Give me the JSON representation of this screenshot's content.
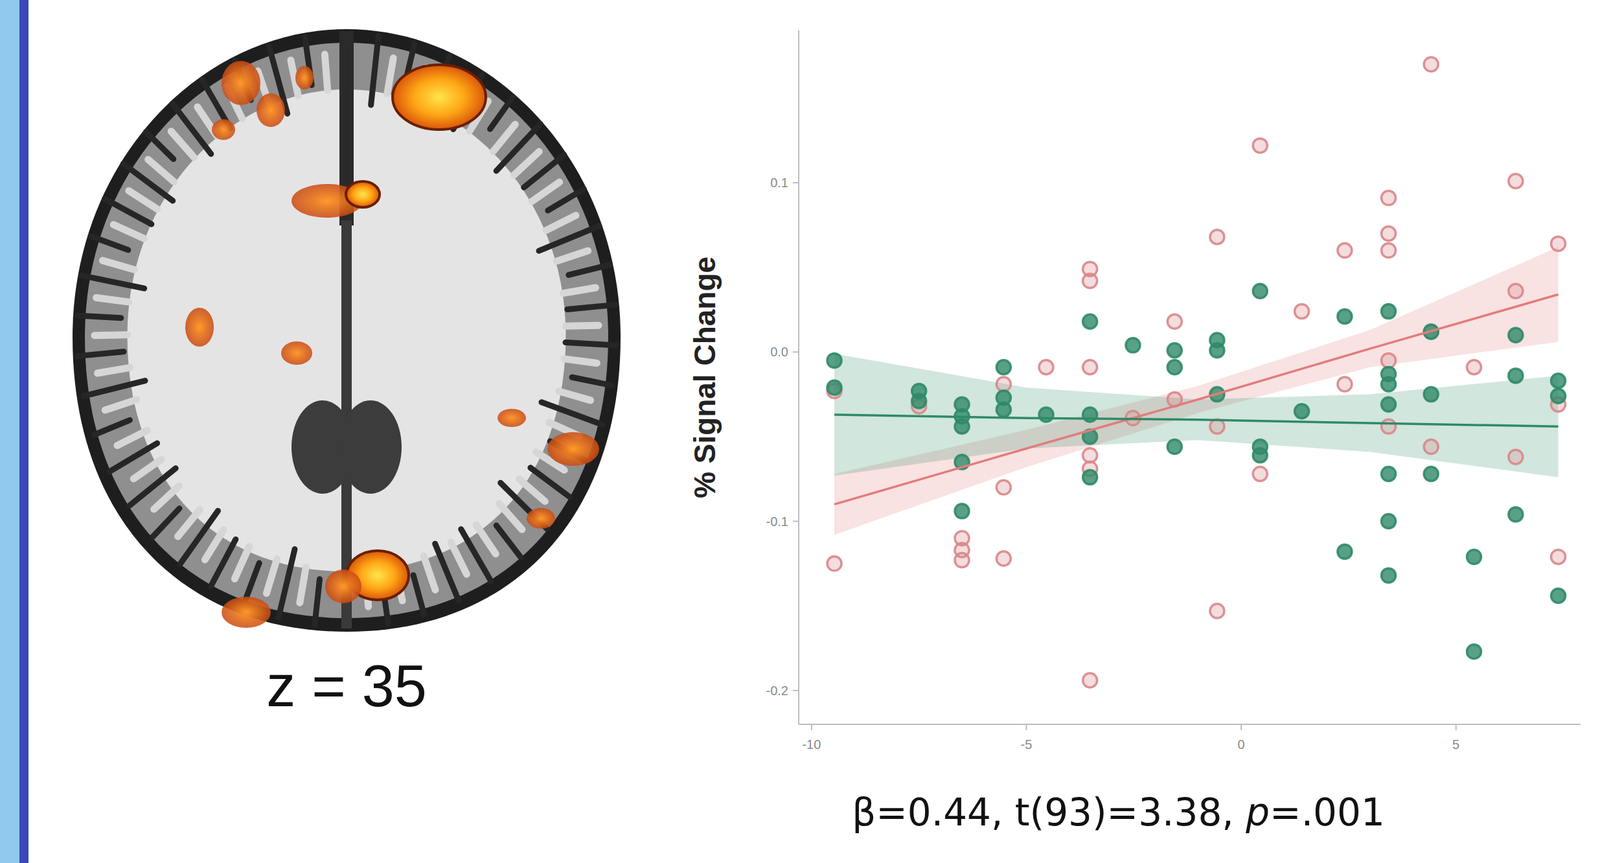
{
  "chart_data": {
    "type": "scatter",
    "y_label": "% Signal Change",
    "annotation": "β=0.44, t(93)=3.38, p=.001",
    "xlim": [
      -10.3,
      7.9
    ],
    "ylim": [
      -0.22,
      0.19
    ],
    "xticks": [
      -10,
      -5,
      0,
      5
    ],
    "yticks": [
      -0.2,
      -0.1,
      {
        "value": 0,
        "label": "0.0"
      },
      0.1
    ],
    "grid": false,
    "series": [
      {
        "color": "#d9868a",
        "marker": "circle",
        "type": "scatter",
        "x": [
          -9.47,
          -9.47,
          -7.5,
          -6.5,
          -6.5,
          -6.5,
          -5.53,
          -5.53,
          -5.53,
          -4.54,
          -3.52,
          -3.52,
          -3.52,
          -3.52,
          -3.52,
          -3.52,
          -2.52,
          -1.55,
          -1.55,
          -0.56,
          -0.56,
          -0.56,
          0.44,
          0.44,
          1.41,
          2.41,
          2.41,
          3.43,
          3.43,
          3.43,
          3.43,
          3.43,
          4.42,
          4.42,
          4.42,
          5.42,
          6.39,
          6.39,
          6.39,
          7.38,
          7.38,
          7.38
        ],
        "values": [
          -0.125,
          -0.023,
          -0.032,
          -0.11,
          -0.117,
          -0.123,
          -0.019,
          -0.08,
          -0.122,
          -0.009,
          0.049,
          0.042,
          -0.009,
          -0.061,
          -0.069,
          -0.194,
          -0.039,
          0.018,
          -0.028,
          0.068,
          -0.044,
          -0.153,
          0.122,
          -0.072,
          0.024,
          0.06,
          -0.019,
          0.091,
          0.07,
          0.06,
          -0.005,
          -0.044,
          0.17,
          0.012,
          -0.056,
          -0.009,
          0.101,
          0.036,
          -0.062,
          0.064,
          -0.031,
          -0.121
        ]
      },
      {
        "color": "#2f8a68",
        "marker": "circle",
        "type": "scatter",
        "x": [
          -9.47,
          -9.47,
          -7.5,
          -7.5,
          -6.5,
          -6.5,
          -6.5,
          -6.5,
          -6.5,
          -5.53,
          -5.53,
          -5.53,
          -4.54,
          -3.52,
          -3.52,
          -3.52,
          -3.52,
          -2.52,
          -1.55,
          -1.55,
          -1.55,
          -0.56,
          -0.56,
          -0.56,
          0.44,
          0.44,
          0.44,
          1.41,
          2.41,
          2.41,
          3.43,
          3.43,
          3.43,
          3.43,
          3.43,
          3.43,
          3.43,
          4.42,
          4.42,
          4.42,
          5.42,
          5.42,
          6.39,
          6.39,
          6.39,
          7.38,
          7.38,
          7.38
        ],
        "values": [
          -0.005,
          -0.021,
          -0.023,
          -0.029,
          -0.031,
          -0.038,
          -0.044,
          -0.065,
          -0.094,
          -0.009,
          -0.027,
          -0.034,
          -0.037,
          0.018,
          -0.037,
          -0.05,
          -0.074,
          0.004,
          0.001,
          -0.009,
          -0.056,
          0.007,
          0.001,
          -0.025,
          0.036,
          -0.056,
          -0.061,
          -0.035,
          -0.118,
          0.021,
          0.024,
          -0.013,
          -0.019,
          -0.031,
          -0.072,
          -0.1,
          -0.132,
          0.012,
          -0.025,
          -0.072,
          -0.121,
          -0.177,
          0.01,
          -0.014,
          -0.096,
          -0.017,
          -0.026,
          -0.144
        ]
      }
    ],
    "fits": [
      {
        "type": "line",
        "color": "#e27c7c",
        "x": [
          -9.47,
          -5,
          -1,
          3,
          7.38
        ],
        "values": [
          -0.09,
          -0.057,
          -0.028,
          0.002,
          0.034
        ],
        "ci_lower": [
          -0.108,
          -0.068,
          -0.036,
          -0.009,
          0.006
        ],
        "ci_upper": [
          -0.072,
          -0.046,
          -0.02,
          0.013,
          0.062
        ]
      },
      {
        "type": "line",
        "color": "#2e8b66",
        "x": [
          -9.47,
          -5,
          -1,
          3,
          7.38
        ],
        "values": [
          -0.037,
          -0.039,
          -0.04,
          -0.042,
          -0.044
        ],
        "ci_lower": [
          -0.073,
          -0.057,
          -0.052,
          -0.059,
          -0.074
        ],
        "ci_upper": [
          -0.001,
          -0.021,
          -0.028,
          -0.025,
          -0.014
        ]
      }
    ]
  },
  "brain_image": {
    "slice_label": "z = 35"
  }
}
